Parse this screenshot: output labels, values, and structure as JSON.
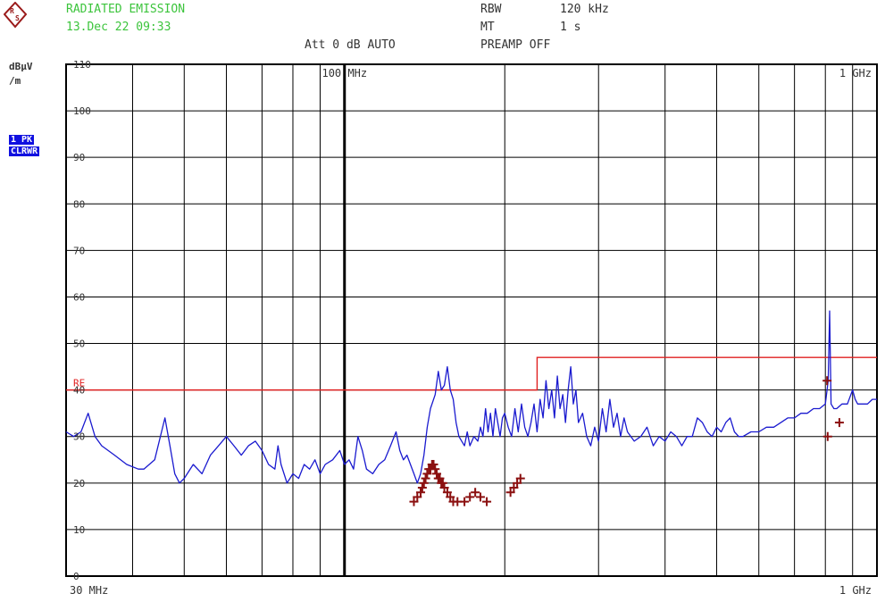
{
  "header": {
    "title": "RADIATED EMISSION",
    "datetime": "13.Dec 22 09:33",
    "rbw_label": "RBW",
    "rbw_value": "120 kHz",
    "mt_label": "MT",
    "mt_value": "1 s",
    "att_text": "Att 0 dB AUTO",
    "preamp_text": "PREAMP OFF"
  },
  "side": {
    "unit_line1": "dBµV",
    "unit_line2": "/m",
    "trace_line1": "1 PK",
    "trace_line2": "CLRWR"
  },
  "colors": {
    "trace": "#1a1acf",
    "limit": "#e02020",
    "markers": "#8b1010",
    "header_text": "#3cc43c",
    "grid": "#000000"
  },
  "chart_data": {
    "type": "line",
    "x_scale": "log",
    "x_unit": "MHz",
    "xlim": [
      30,
      1000
    ],
    "ylim": [
      0,
      110
    ],
    "grid": true,
    "xtick_labels": [
      {
        "x": 30,
        "label": "30 MHz"
      },
      {
        "x": 100,
        "label": "100 MHz"
      },
      {
        "x": 1000,
        "label": "1 GHz"
      }
    ],
    "yticks": [
      0,
      10,
      20,
      30,
      40,
      50,
      60,
      70,
      80,
      90,
      100,
      110
    ],
    "limit_label": "RE",
    "limit_line": [
      [
        30,
        40
      ],
      [
        230,
        40
      ],
      [
        230,
        47
      ],
      [
        1000,
        47
      ]
    ],
    "series": [
      {
        "points": [
          [
            30,
            31
          ],
          [
            31,
            30
          ],
          [
            32,
            31
          ],
          [
            33,
            35
          ],
          [
            34,
            30
          ],
          [
            35,
            28
          ],
          [
            37,
            26
          ],
          [
            39,
            24
          ],
          [
            41,
            23
          ],
          [
            42,
            23
          ],
          [
            44,
            25
          ],
          [
            46,
            34
          ],
          [
            47,
            28
          ],
          [
            48,
            22
          ],
          [
            49,
            20
          ],
          [
            50,
            21
          ],
          [
            52,
            24
          ],
          [
            54,
            22
          ],
          [
            56,
            26
          ],
          [
            58,
            28
          ],
          [
            60,
            30
          ],
          [
            62,
            28
          ],
          [
            64,
            26
          ],
          [
            66,
            28
          ],
          [
            68,
            29
          ],
          [
            70,
            27
          ],
          [
            72,
            24
          ],
          [
            74,
            23
          ],
          [
            75,
            28
          ],
          [
            76,
            24
          ],
          [
            78,
            20
          ],
          [
            80,
            22
          ],
          [
            82,
            21
          ],
          [
            84,
            24
          ],
          [
            86,
            23
          ],
          [
            88,
            25
          ],
          [
            90,
            22
          ],
          [
            92,
            24
          ],
          [
            95,
            25
          ],
          [
            98,
            27
          ],
          [
            100,
            24
          ],
          [
            102,
            25
          ],
          [
            104,
            23
          ],
          [
            106,
            30
          ],
          [
            108,
            27
          ],
          [
            110,
            23
          ],
          [
            113,
            22
          ],
          [
            116,
            24
          ],
          [
            119,
            25
          ],
          [
            122,
            28
          ],
          [
            125,
            31
          ],
          [
            127,
            27
          ],
          [
            129,
            25
          ],
          [
            131,
            26
          ],
          [
            133,
            24
          ],
          [
            135,
            22
          ],
          [
            137,
            20
          ],
          [
            139,
            22
          ],
          [
            141,
            26
          ],
          [
            143,
            32
          ],
          [
            145,
            36
          ],
          [
            148,
            39
          ],
          [
            150,
            44
          ],
          [
            152,
            40
          ],
          [
            154,
            41
          ],
          [
            156,
            45
          ],
          [
            158,
            40
          ],
          [
            160,
            38
          ],
          [
            162,
            33
          ],
          [
            164,
            30
          ],
          [
            166,
            29
          ],
          [
            168,
            28
          ],
          [
            170,
            31
          ],
          [
            172,
            28
          ],
          [
            175,
            30
          ],
          [
            178,
            29
          ],
          [
            180,
            32
          ],
          [
            182,
            30
          ],
          [
            184,
            36
          ],
          [
            186,
            31
          ],
          [
            188,
            35
          ],
          [
            190,
            30
          ],
          [
            192,
            36
          ],
          [
            194,
            33
          ],
          [
            196,
            30
          ],
          [
            198,
            34
          ],
          [
            200,
            35
          ],
          [
            203,
            32
          ],
          [
            206,
            30
          ],
          [
            209,
            36
          ],
          [
            212,
            31
          ],
          [
            215,
            37
          ],
          [
            218,
            32
          ],
          [
            221,
            30
          ],
          [
            224,
            33
          ],
          [
            227,
            37
          ],
          [
            230,
            31
          ],
          [
            233,
            38
          ],
          [
            236,
            34
          ],
          [
            239,
            42
          ],
          [
            242,
            36
          ],
          [
            245,
            40
          ],
          [
            248,
            34
          ],
          [
            251,
            43
          ],
          [
            254,
            36
          ],
          [
            257,
            39
          ],
          [
            260,
            33
          ],
          [
            263,
            40
          ],
          [
            266,
            45
          ],
          [
            269,
            37
          ],
          [
            272,
            40
          ],
          [
            275,
            33
          ],
          [
            280,
            35
          ],
          [
            285,
            30
          ],
          [
            290,
            28
          ],
          [
            295,
            32
          ],
          [
            300,
            29
          ],
          [
            305,
            36
          ],
          [
            310,
            31
          ],
          [
            315,
            38
          ],
          [
            320,
            32
          ],
          [
            325,
            35
          ],
          [
            330,
            30
          ],
          [
            335,
            34
          ],
          [
            340,
            31
          ],
          [
            345,
            30
          ],
          [
            350,
            29
          ],
          [
            360,
            30
          ],
          [
            370,
            32
          ],
          [
            380,
            28
          ],
          [
            390,
            30
          ],
          [
            400,
            29
          ],
          [
            410,
            31
          ],
          [
            420,
            30
          ],
          [
            430,
            28
          ],
          [
            440,
            30
          ],
          [
            450,
            30
          ],
          [
            460,
            34
          ],
          [
            470,
            33
          ],
          [
            480,
            31
          ],
          [
            490,
            30
          ],
          [
            500,
            32
          ],
          [
            510,
            31
          ],
          [
            520,
            33
          ],
          [
            530,
            34
          ],
          [
            540,
            31
          ],
          [
            550,
            30
          ],
          [
            560,
            30
          ],
          [
            580,
            31
          ],
          [
            600,
            31
          ],
          [
            620,
            32
          ],
          [
            640,
            32
          ],
          [
            660,
            33
          ],
          [
            680,
            34
          ],
          [
            700,
            34
          ],
          [
            720,
            35
          ],
          [
            740,
            35
          ],
          [
            760,
            36
          ],
          [
            780,
            36
          ],
          [
            800,
            37
          ],
          [
            810,
            42
          ],
          [
            815,
            57
          ],
          [
            820,
            37
          ],
          [
            830,
            36
          ],
          [
            840,
            36
          ],
          [
            860,
            37
          ],
          [
            880,
            37
          ],
          [
            900,
            40
          ],
          [
            910,
            38
          ],
          [
            920,
            37
          ],
          [
            940,
            37
          ],
          [
            960,
            37
          ],
          [
            980,
            38
          ],
          [
            1000,
            38
          ]
        ]
      }
    ],
    "markers": [
      [
        135,
        16
      ],
      [
        137,
        17
      ],
      [
        139,
        18
      ],
      [
        140,
        19
      ],
      [
        141,
        20
      ],
      [
        142,
        21
      ],
      [
        143,
        22
      ],
      [
        144,
        23
      ],
      [
        145,
        23
      ],
      [
        146,
        24
      ],
      [
        147,
        24
      ],
      [
        148,
        23
      ],
      [
        149,
        22
      ],
      [
        150,
        21
      ],
      [
        151,
        21
      ],
      [
        152,
        20
      ],
      [
        153,
        20
      ],
      [
        154,
        19
      ],
      [
        156,
        18
      ],
      [
        158,
        17
      ],
      [
        160,
        16
      ],
      [
        163,
        16
      ],
      [
        168,
        16
      ],
      [
        172,
        17
      ],
      [
        176,
        18
      ],
      [
        180,
        17
      ],
      [
        185,
        16
      ],
      [
        205,
        18
      ],
      [
        208,
        19
      ],
      [
        211,
        20
      ],
      [
        214,
        21
      ],
      [
        806,
        42
      ],
      [
        808,
        30
      ],
      [
        850,
        33
      ]
    ]
  }
}
